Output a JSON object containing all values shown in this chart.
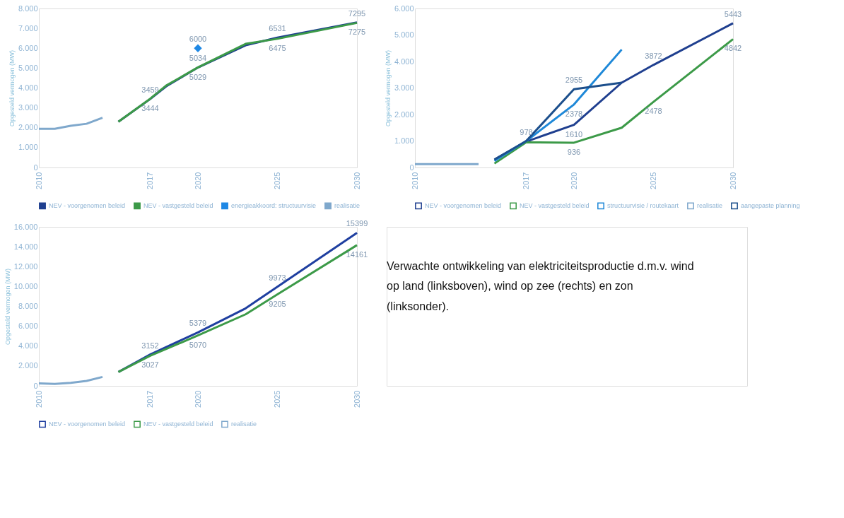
{
  "chart_data": [
    {
      "type": "line",
      "ylabel": "Opgesteld vermogen (MW)",
      "xlim": [
        2010,
        2030
      ],
      "xticks": [
        2010,
        2017,
        2020,
        2025,
        2030
      ],
      "ylim": [
        0,
        8000
      ],
      "yticks": [
        {
          "value": 0,
          "label": "0"
        },
        {
          "value": 1000,
          "label": "1.000"
        },
        {
          "value": 2000,
          "label": "2.000"
        },
        {
          "value": 3000,
          "label": "3.000"
        },
        {
          "value": 4000,
          "label": "4.000"
        },
        {
          "value": 5000,
          "label": "5.000"
        },
        {
          "value": 6000,
          "label": "6.000"
        },
        {
          "value": 7000,
          "label": "7.000"
        },
        {
          "value": 8000,
          "label": "8.000"
        }
      ],
      "legend": "bottom",
      "series": [
        {
          "name": "NEV - voorgenomen beleid",
          "color": "#1f3f8f",
          "x": [
            2015,
            2017,
            2018,
            2020,
            2023,
            2025,
            2030
          ],
          "values": [
            2300,
            3444,
            4080,
            5029,
            6150,
            6531,
            7295
          ],
          "value_labels": [
            null,
            "3444",
            null,
            "5029",
            null,
            "6531",
            "7295"
          ]
        },
        {
          "name": "NEV - vastgesteld beleid",
          "color": "#3c9a48",
          "x": [
            2015,
            2017,
            2018,
            2020,
            2023,
            2025,
            2030
          ],
          "values": [
            2300,
            3459,
            4120,
            5034,
            6220,
            6475,
            7275
          ],
          "value_labels": [
            null,
            "3459",
            null,
            "5034",
            null,
            "6475",
            "7275"
          ]
        },
        {
          "name": "energieakkoord: structuurvisie",
          "color": "#1e88e5",
          "type": "scatter",
          "marker": "diamond",
          "x": [
            2020
          ],
          "values": [
            6000
          ],
          "value_labels": [
            "6000"
          ]
        },
        {
          "name": "realisatie",
          "color": "#7fa8cc",
          "x": [
            2010,
            2011,
            2012,
            2013,
            2014
          ],
          "values": [
            1950,
            1950,
            2100,
            2200,
            2500
          ]
        }
      ]
    },
    {
      "type": "line",
      "ylabel": "Opgesteld vermogen (MW)",
      "xlim": [
        2010,
        2030
      ],
      "xticks": [
        2010,
        2017,
        2020,
        2025,
        2030
      ],
      "ylim": [
        0,
        6000
      ],
      "yticks": [
        {
          "value": 0,
          "label": "0"
        },
        {
          "value": 1000,
          "label": "1.000"
        },
        {
          "value": 2000,
          "label": "2.000"
        },
        {
          "value": 3000,
          "label": "3.000"
        },
        {
          "value": 4000,
          "label": "4.000"
        },
        {
          "value": 5000,
          "label": "5.000"
        },
        {
          "value": 6000,
          "label": "6.000"
        }
      ],
      "legend": "bottom",
      "series": [
        {
          "name": "NEV - voorgenomen beleid",
          "color": "#1f3f8f",
          "x": [
            2015,
            2017,
            2020,
            2023,
            2025,
            2030
          ],
          "values": [
            300,
            978,
            1610,
            3200,
            3872,
            5443
          ],
          "value_labels": [
            null,
            "978",
            "1610",
            null,
            "3872",
            "5443"
          ]
        },
        {
          "name": "NEV - vastgesteld beleid",
          "color": "#3c9a48",
          "x": [
            2015,
            2017,
            2020,
            2023,
            2025,
            2030
          ],
          "values": [
            150,
            950,
            936,
            1500,
            2478,
            4842
          ],
          "value_labels": [
            null,
            null,
            "936",
            null,
            "2478",
            "4842"
          ]
        },
        {
          "name": "structuurvisie / routekaart",
          "color": "#1e88d8",
          "x": [
            2015,
            2017,
            2020,
            2023
          ],
          "values": [
            250,
            1000,
            2378,
            4450
          ],
          "value_labels": [
            null,
            null,
            "2378",
            null
          ]
        },
        {
          "name": "realisatie",
          "color": "#7fa8cc",
          "x": [
            2010,
            2014
          ],
          "values": [
            130,
            130
          ]
        },
        {
          "name": "aangepaste planning",
          "color": "#1c4f8c",
          "x": [
            2015,
            2017,
            2020,
            2023
          ],
          "values": [
            300,
            1000,
            2955,
            3200
          ],
          "value_labels": [
            null,
            null,
            "2955",
            null
          ]
        }
      ]
    },
    {
      "type": "line",
      "ylabel": "Opgesteld vermogen (MW)",
      "xlim": [
        2010,
        2030
      ],
      "xticks": [
        2010,
        2017,
        2020,
        2025,
        2030
      ],
      "ylim": [
        0,
        16000
      ],
      "yticks": [
        {
          "value": 0,
          "label": "0"
        },
        {
          "value": 2000,
          "label": "2.000"
        },
        {
          "value": 4000,
          "label": "4.000"
        },
        {
          "value": 6000,
          "label": "6.000"
        },
        {
          "value": 8000,
          "label": "8.000"
        },
        {
          "value": 10000,
          "label": "10.000"
        },
        {
          "value": 12000,
          "label": "12.000"
        },
        {
          "value": 14000,
          "label": "14.000"
        },
        {
          "value": 16000,
          "label": "16.000"
        }
      ],
      "legend": "bottom",
      "series": [
        {
          "name": "NEV - voorgenomen beleid",
          "color": "#1f3fa0",
          "x": [
            2015,
            2017,
            2020,
            2023,
            2025,
            2030
          ],
          "values": [
            1400,
            3152,
            5379,
            7800,
            9973,
            15399
          ],
          "value_labels": [
            null,
            "3152",
            "5379",
            null,
            "9973",
            "15399"
          ]
        },
        {
          "name": "NEV - vastgesteld beleid",
          "color": "#3c9a48",
          "x": [
            2015,
            2017,
            2020,
            2023,
            2025,
            2030
          ],
          "values": [
            1400,
            3027,
            5070,
            7200,
            9205,
            14161
          ],
          "value_labels": [
            null,
            "3027",
            "5070",
            null,
            "9205",
            "14161"
          ]
        },
        {
          "name": "realisatie",
          "color": "#7fa8cc",
          "x": [
            2010,
            2011,
            2012,
            2013,
            2014
          ],
          "values": [
            250,
            200,
            300,
            500,
            900
          ]
        }
      ]
    },
    {
      "type": "other",
      "annotations": [
        "Verwachte ontwikkeling van elektriciteitsproductie d.m.v. wind op land (linksboven), wind op zee (rechts) en zon (linksonder)."
      ]
    }
  ]
}
